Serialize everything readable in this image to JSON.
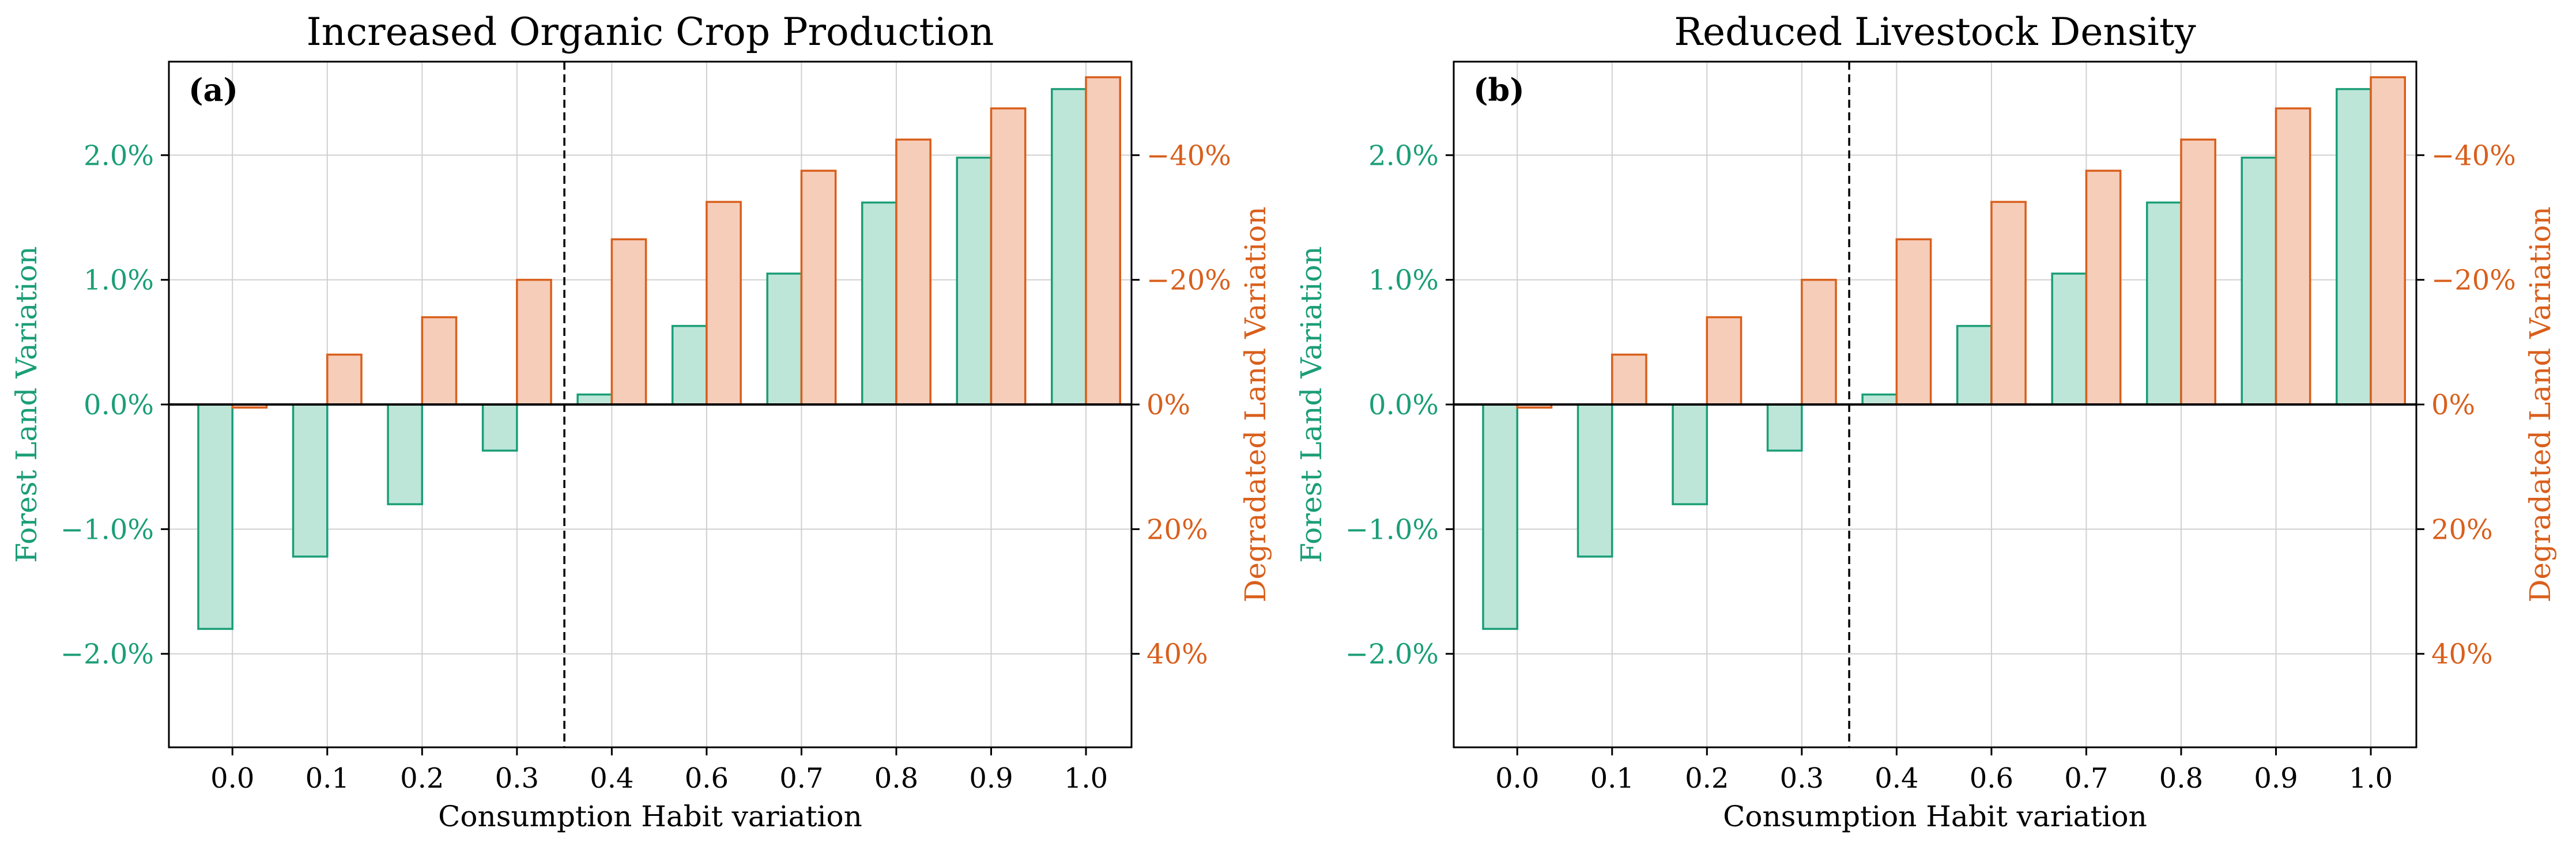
{
  "colors": {
    "forest_fill": "#bde6d8",
    "forest_edge": "#1b9e77",
    "degraded_fill": "#f6cdb9",
    "degraded_edge": "#d95f1c",
    "forest_text": "#1b9e77",
    "degraded_text": "#d95f1c",
    "grid": "#d0d0d0"
  },
  "chart_data": [
    {
      "type": "bar",
      "panel_label": "(a)",
      "title": "Increased Organic Crop Production",
      "xlabel": "Consumption Habit variation",
      "ylabel": "Forest Land Variation",
      "ylabel_right": "Degradated Land Variation",
      "categories": [
        "0.0",
        "0.1",
        "0.2",
        "0.3",
        "0.4",
        "0.6",
        "0.7",
        "0.8",
        "0.9",
        "1.0"
      ],
      "ylim": [
        -2.75,
        2.75
      ],
      "yticks": [
        -2.0,
        -1.0,
        0.0,
        1.0,
        2.0
      ],
      "ytick_labels": [
        "−2.0%",
        "−1.0%",
        "0.0%",
        "1.0%",
        "2.0%"
      ],
      "ylim_right": [
        55,
        -55
      ],
      "yticks_right": [
        40,
        20,
        0,
        -20,
        -40
      ],
      "ytick_labels_right": [
        "40%",
        "20%",
        "0%",
        "−20%",
        "−40%"
      ],
      "threshold_x": 0.35,
      "grid": true,
      "series": [
        {
          "axis": "left",
          "values": [
            -1.8,
            -1.22,
            -0.8,
            -0.37,
            0.08,
            0.63,
            1.05,
            1.62,
            1.98,
            2.53
          ]
        },
        {
          "axis": "right",
          "values": [
            0.5,
            -8,
            -14,
            -20,
            -26.5,
            -32.5,
            -37.5,
            -42.5,
            -47.5,
            -52.5
          ]
        }
      ]
    },
    {
      "type": "bar",
      "panel_label": "(b)",
      "title": "Reduced Livestock Density",
      "xlabel": "Consumption Habit variation",
      "ylabel": "Forest Land Variation",
      "ylabel_right": "Degradated Land Variation",
      "categories": [
        "0.0",
        "0.1",
        "0.2",
        "0.3",
        "0.4",
        "0.6",
        "0.7",
        "0.8",
        "0.9",
        "1.0"
      ],
      "ylim": [
        -2.75,
        2.75
      ],
      "yticks": [
        -2.0,
        -1.0,
        0.0,
        1.0,
        2.0
      ],
      "ytick_labels": [
        "−2.0%",
        "−1.0%",
        "0.0%",
        "1.0%",
        "2.0%"
      ],
      "ylim_right": [
        55,
        -55
      ],
      "yticks_right": [
        40,
        20,
        0,
        -20,
        -40
      ],
      "ytick_labels_right": [
        "40%",
        "20%",
        "0%",
        "−20%",
        "−40%"
      ],
      "threshold_x": 0.35,
      "grid": true,
      "series": [
        {
          "axis": "left",
          "values": [
            -1.8,
            -1.22,
            -0.8,
            -0.37,
            0.08,
            0.63,
            1.05,
            1.62,
            1.98,
            2.53
          ]
        },
        {
          "axis": "right",
          "values": [
            0.5,
            -8,
            -14,
            -20,
            -26.5,
            -32.5,
            -37.5,
            -42.5,
            -47.5,
            -52.5
          ]
        }
      ]
    }
  ]
}
